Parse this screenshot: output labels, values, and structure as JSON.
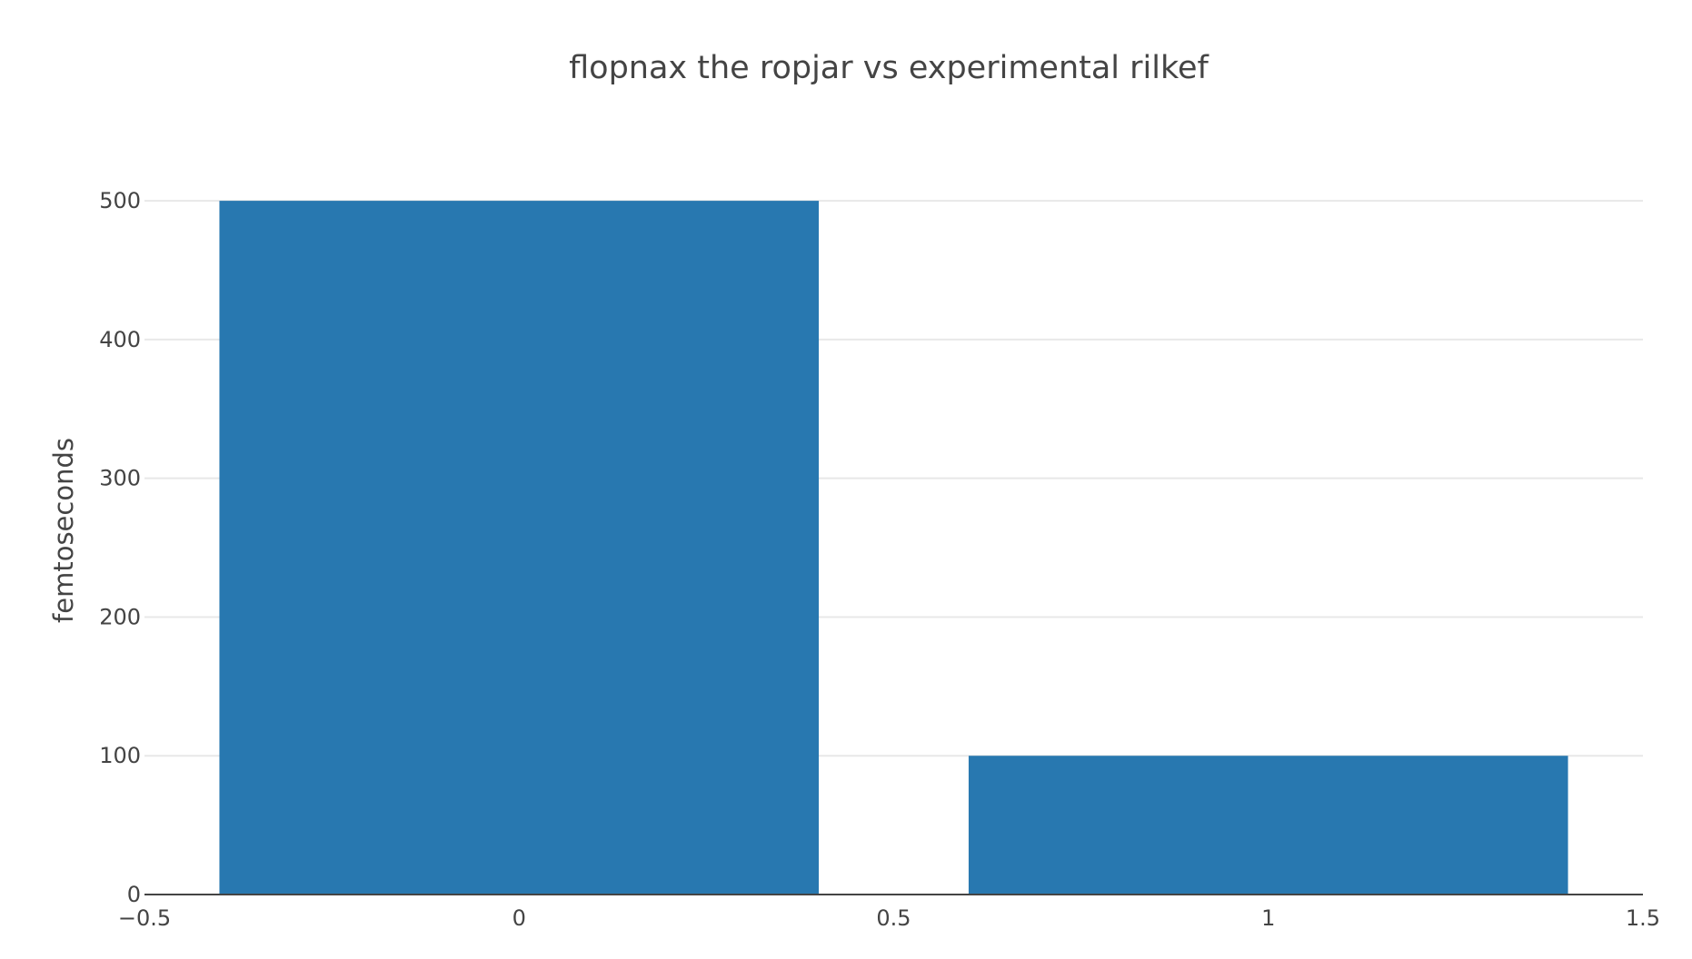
{
  "chart_data": {
    "type": "bar",
    "title": "flopnax the ropjar vs experimental rilkef",
    "xlabel": "",
    "ylabel": "femtoseconds",
    "x": [
      0,
      1
    ],
    "values": [
      500,
      100
    ],
    "bar_width": 0.8,
    "xlim": [
      -0.5,
      1.5
    ],
    "ylim": [
      0,
      540
    ],
    "x_ticks": [
      -0.5,
      0,
      0.5,
      1,
      1.5
    ],
    "x_tick_labels": [
      "−0.5",
      "0",
      "0.5",
      "1",
      "1.5"
    ],
    "y_ticks": [
      0,
      100,
      200,
      300,
      400,
      500
    ],
    "y_tick_labels": [
      "0",
      "100",
      "200",
      "300",
      "400",
      "500"
    ],
    "grid": true,
    "legend": "none",
    "bar_color": "#2878b0"
  }
}
